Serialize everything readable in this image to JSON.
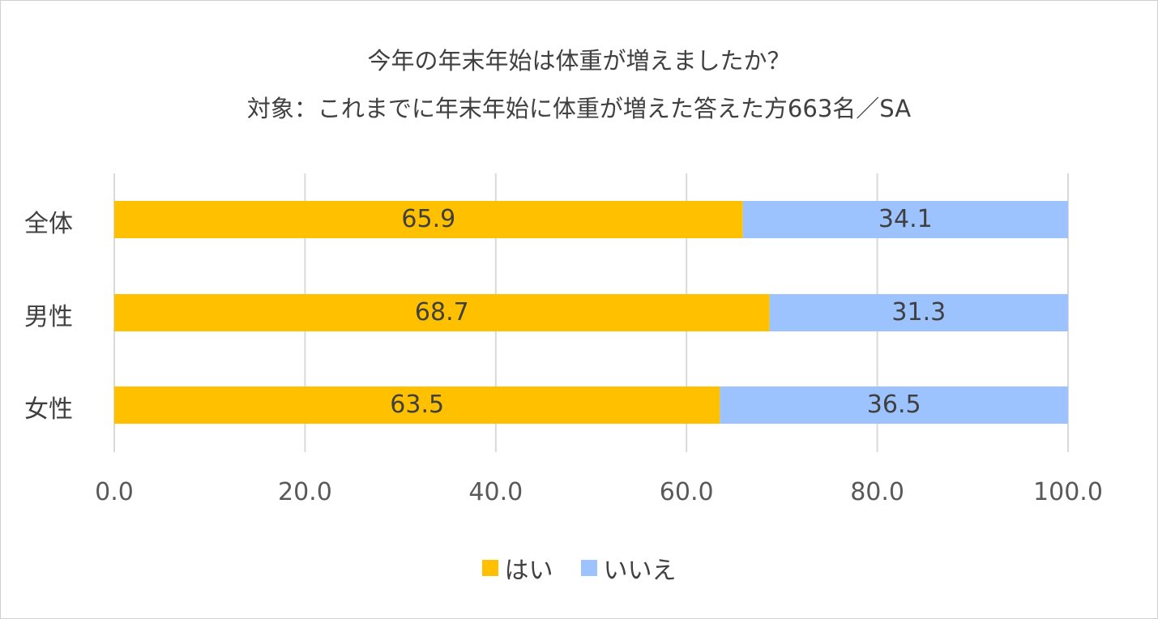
{
  "chart_data": {
    "type": "bar",
    "orientation": "horizontal",
    "stacked": true,
    "title": "今年の年末年始は体重が増えましたか？",
    "subtitle": "対象：これまでに年末年始に体重が増えた答えた方663名／SA",
    "categories": [
      "全体",
      "男性",
      "女性"
    ],
    "series": [
      {
        "name": "はい",
        "color": "#FFC000",
        "values": [
          65.9,
          68.7,
          63.5
        ],
        "labels": [
          "65.9",
          "68.7",
          "63.5"
        ]
      },
      {
        "name": "いいえ",
        "color": "#9DC3FF",
        "values": [
          34.1,
          31.3,
          36.5
        ],
        "labels": [
          "34.1",
          "31.3",
          "36.5"
        ]
      }
    ],
    "xlim": [
      0,
      100
    ],
    "xticks": [
      0,
      20,
      40,
      60,
      80,
      100
    ],
    "xtick_labels": [
      "0.0",
      "20.0",
      "40.0",
      "60.0",
      "80.0",
      "100.0"
    ],
    "grid": true,
    "legend_position": "bottom"
  }
}
